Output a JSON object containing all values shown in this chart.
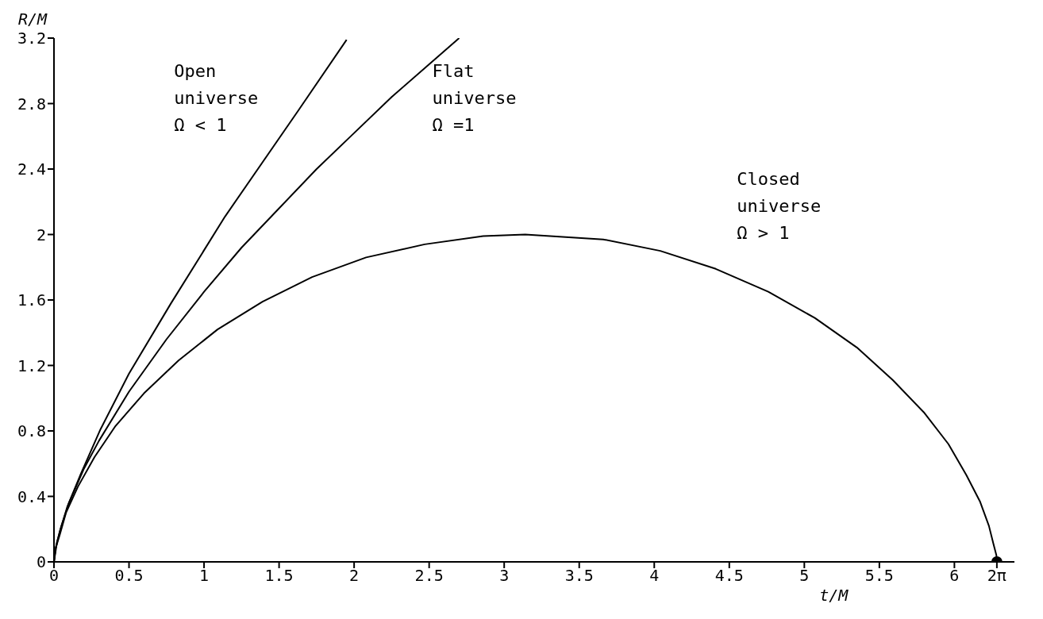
{
  "chart_data": {
    "type": "line",
    "xlabel": "t/M",
    "ylabel": "R/M",
    "xlim": [
      0,
      6.4
    ],
    "xticks": [
      0,
      0.5,
      1,
      1.5,
      2,
      2.5,
      3,
      3.5,
      4,
      4.5,
      5,
      5.5,
      6,
      {
        "value": 6.283,
        "label": "2π"
      }
    ],
    "ylim": [
      0,
      3.2
    ],
    "yticks": [
      0,
      0.4,
      0.8,
      1.2,
      1.6,
      2,
      2.4,
      2.8,
      3.2
    ],
    "series": [
      {
        "name": "Open\nuniverse\nΩ < 1",
        "color": "#000000",
        "x": [
          0,
          0.01,
          0.04,
          0.09,
          0.18,
          0.31,
          0.5,
          0.78,
          1.14,
          1.63,
          1.95
        ],
        "values": [
          0,
          0.08,
          0.19,
          0.34,
          0.54,
          0.81,
          1.15,
          1.58,
          2.11,
          2.76,
          3.19
        ]
      },
      {
        "name": "Flat\nuniverse\nΩ =1",
        "color": "#000000",
        "x": [
          0,
          0.02,
          0.05,
          0.1,
          0.2,
          0.3,
          0.5,
          0.75,
          1,
          1.25,
          1.5,
          1.75,
          2,
          2.25,
          2.5,
          2.7
        ],
        "values": [
          0,
          0.12,
          0.22,
          0.36,
          0.57,
          0.74,
          1.04,
          1.36,
          1.65,
          1.92,
          2.16,
          2.4,
          2.62,
          2.84,
          3.04,
          3.2
        ]
      },
      {
        "name": "Closed\nuniverse\nΩ > 1",
        "color": "#000000",
        "x": [
          0,
          0.01,
          0.04,
          0.08,
          0.16,
          0.27,
          0.41,
          0.6,
          0.83,
          1.09,
          1.39,
          1.72,
          2.08,
          2.47,
          2.86,
          3.14,
          3.66,
          4.04,
          4.41,
          4.76,
          5.07,
          5.35,
          5.59,
          5.8,
          5.96,
          6.08,
          6.17,
          6.23,
          6.26,
          6.28,
          6.283
        ],
        "values": [
          0,
          0.08,
          0.17,
          0.3,
          0.46,
          0.64,
          0.83,
          1.03,
          1.23,
          1.42,
          1.59,
          1.74,
          1.86,
          1.94,
          1.99,
          2,
          1.97,
          1.9,
          1.79,
          1.65,
          1.49,
          1.31,
          1.11,
          0.91,
          0.72,
          0.53,
          0.37,
          0.22,
          0.11,
          0.04,
          0
        ]
      },
      {
        "type": "scatter",
        "color": "#000000",
        "marker": "circle",
        "x": [
          6.283
        ],
        "values": [
          0
        ]
      }
    ]
  }
}
